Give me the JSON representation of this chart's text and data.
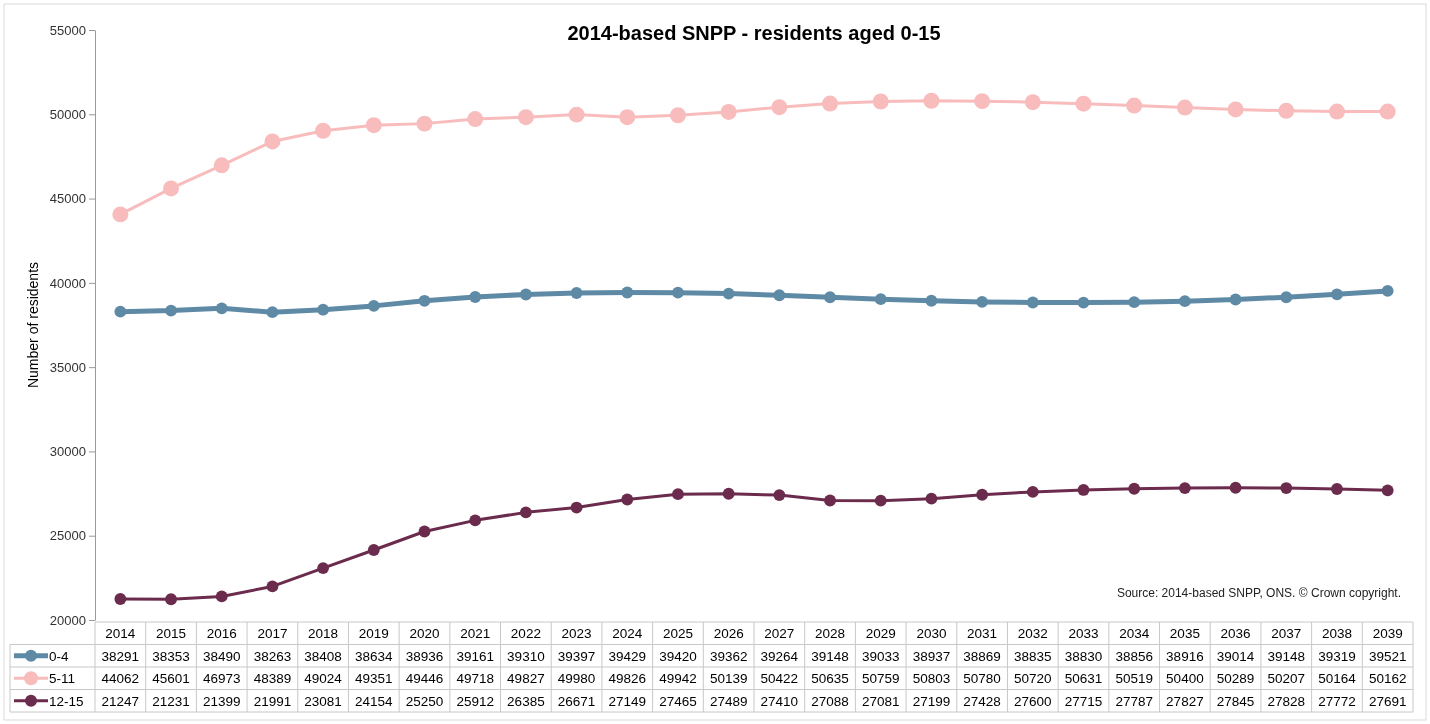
{
  "chart_data": {
    "type": "line",
    "title": "2014-based SNPP - residents aged 0-15",
    "ylabel": "Number of residents",
    "categories": [
      "2014",
      "2015",
      "2016",
      "2017",
      "2018",
      "2019",
      "2020",
      "2021",
      "2022",
      "2023",
      "2024",
      "2025",
      "2026",
      "2027",
      "2028",
      "2029",
      "2030",
      "2031",
      "2032",
      "2033",
      "2034",
      "2035",
      "2036",
      "2037",
      "2038",
      "2039"
    ],
    "series": [
      {
        "name": "0-4",
        "color": "#5f8aa6",
        "values": [
          38291,
          38353,
          38490,
          38263,
          38408,
          38634,
          38936,
          39161,
          39310,
          39397,
          39429,
          39420,
          39362,
          39264,
          39148,
          39033,
          38937,
          38869,
          38835,
          38830,
          38856,
          38916,
          39014,
          39148,
          39319,
          39521
        ]
      },
      {
        "name": "5-11",
        "color": "#f8bcbc",
        "values": [
          44062,
          45601,
          46973,
          48389,
          49024,
          49351,
          49446,
          49718,
          49827,
          49980,
          49826,
          49942,
          50139,
          50422,
          50635,
          50759,
          50803,
          50780,
          50720,
          50631,
          50519,
          50400,
          50289,
          50207,
          50164,
          50162
        ]
      },
      {
        "name": "12-15",
        "color": "#6b2b4c",
        "values": [
          21247,
          21231,
          21399,
          21991,
          23081,
          24154,
          25250,
          25912,
          26385,
          26671,
          27149,
          27465,
          27489,
          27410,
          27088,
          27081,
          27199,
          27428,
          27600,
          27715,
          27787,
          27827,
          27845,
          27828,
          27772,
          27691
        ]
      }
    ],
    "ylim": [
      20000,
      55000
    ],
    "yticks": [
      20000,
      25000,
      30000,
      35000,
      40000,
      45000,
      50000,
      55000
    ],
    "grid": false,
    "legend": "bottom",
    "marker": "circle",
    "line_style": "solid",
    "data_labels": true,
    "annotations": [
      "Source: 2014-based SNPP, ONS. © Crown copyright."
    ]
  }
}
